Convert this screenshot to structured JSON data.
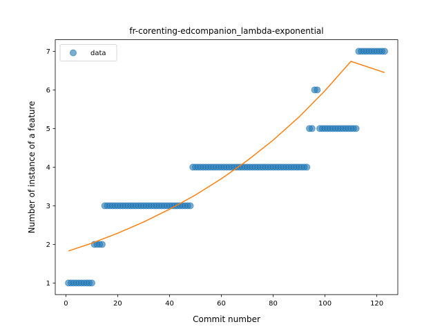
{
  "chart_data": {
    "type": "scatter",
    "title": "fr-corenting-edcompanion_lambda-exponential",
    "xlabel": "Commit number",
    "ylabel": "Number of instance of a feature",
    "xlim": [
      -4.1,
      128.1
    ],
    "ylim": [
      0.7,
      7.3
    ],
    "xticks": [
      0,
      20,
      40,
      60,
      80,
      100,
      120
    ],
    "yticks": [
      1,
      2,
      3,
      4,
      5,
      6,
      7
    ],
    "xtick_labels": [
      "0",
      "20",
      "40",
      "60",
      "80",
      "100",
      "120"
    ],
    "ytick_labels": [
      "1",
      "2",
      "3",
      "4",
      "5",
      "6",
      "7"
    ],
    "legend": {
      "position": "upper-left",
      "entries": [
        "data"
      ]
    },
    "grid": false,
    "series": [
      {
        "name": "data",
        "kind": "scatter",
        "color": "#1f77b4",
        "alpha": 0.6,
        "segments": [
          {
            "x_start": 1,
            "x_end": 10,
            "y": 1
          },
          {
            "x_start": 11,
            "x_end": 14,
            "y": 2
          },
          {
            "x_start": 15,
            "x_end": 48,
            "y": 3
          },
          {
            "x_start": 49,
            "x_end": 93,
            "y": 4
          },
          {
            "x_start": 94,
            "x_end": 95,
            "y": 5
          },
          {
            "x_start": 96,
            "x_end": 97,
            "y": 6
          },
          {
            "x_start": 98,
            "x_end": 112,
            "y": 5
          },
          {
            "x_start": 113,
            "x_end": 123,
            "y": 7
          }
        ]
      },
      {
        "kind": "line",
        "color": "#ff7f0e",
        "fit": "exponential",
        "x": [
          1,
          10,
          20,
          30,
          40,
          50,
          60,
          70,
          80,
          90,
          100,
          110,
          123
        ],
        "y": [
          1.83,
          2.03,
          2.29,
          2.58,
          2.91,
          3.28,
          3.7,
          4.17,
          4.7,
          5.3,
          5.98,
          6.74,
          6.45
        ]
      }
    ]
  }
}
